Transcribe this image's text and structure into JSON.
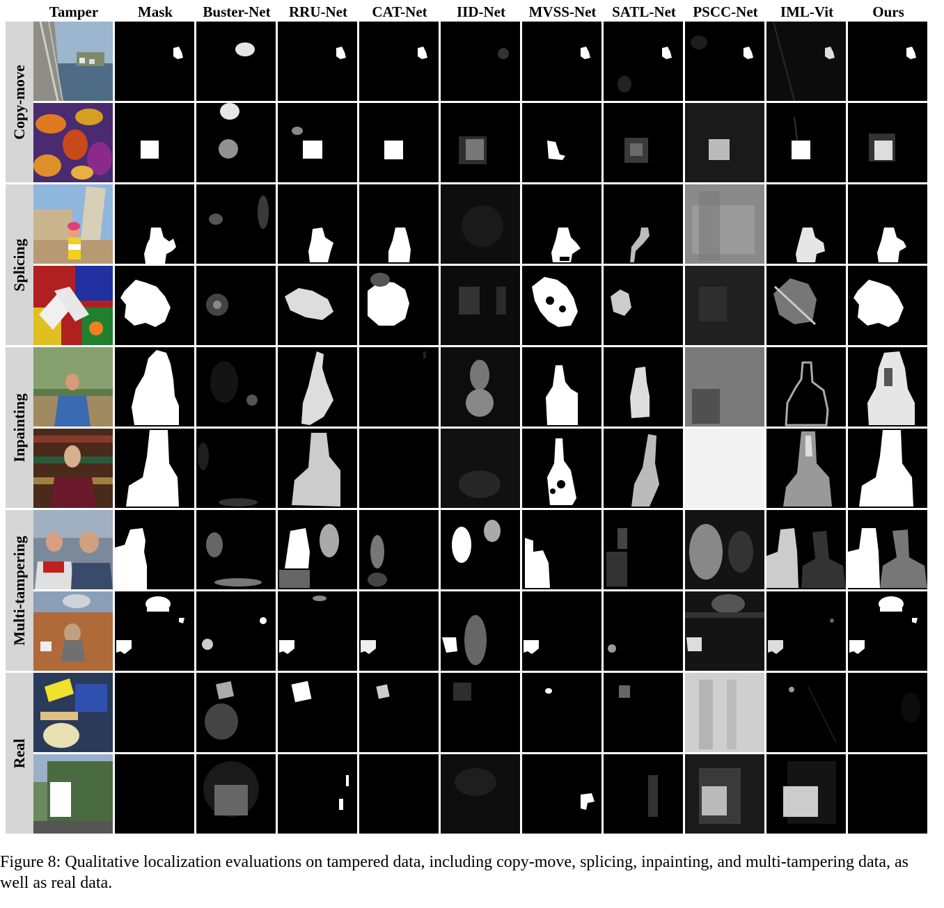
{
  "columns": [
    "Tamper",
    "Mask",
    "Buster-Net",
    "RRU-Net",
    "CAT-Net",
    "IID-Net",
    "MVSS-Net",
    "SATL-Net",
    "PSCC-Net",
    "IML-Vit",
    "Ours"
  ],
  "groups": [
    "Copy-move",
    "Splicing",
    "Inpainting",
    "Multi-tampering",
    "Real"
  ],
  "caption": "Figure 8: Qualitative localization evaluations on tampered data, including copy-move, splicing, inpainting, and multi-tampering data, as well as real data."
}
